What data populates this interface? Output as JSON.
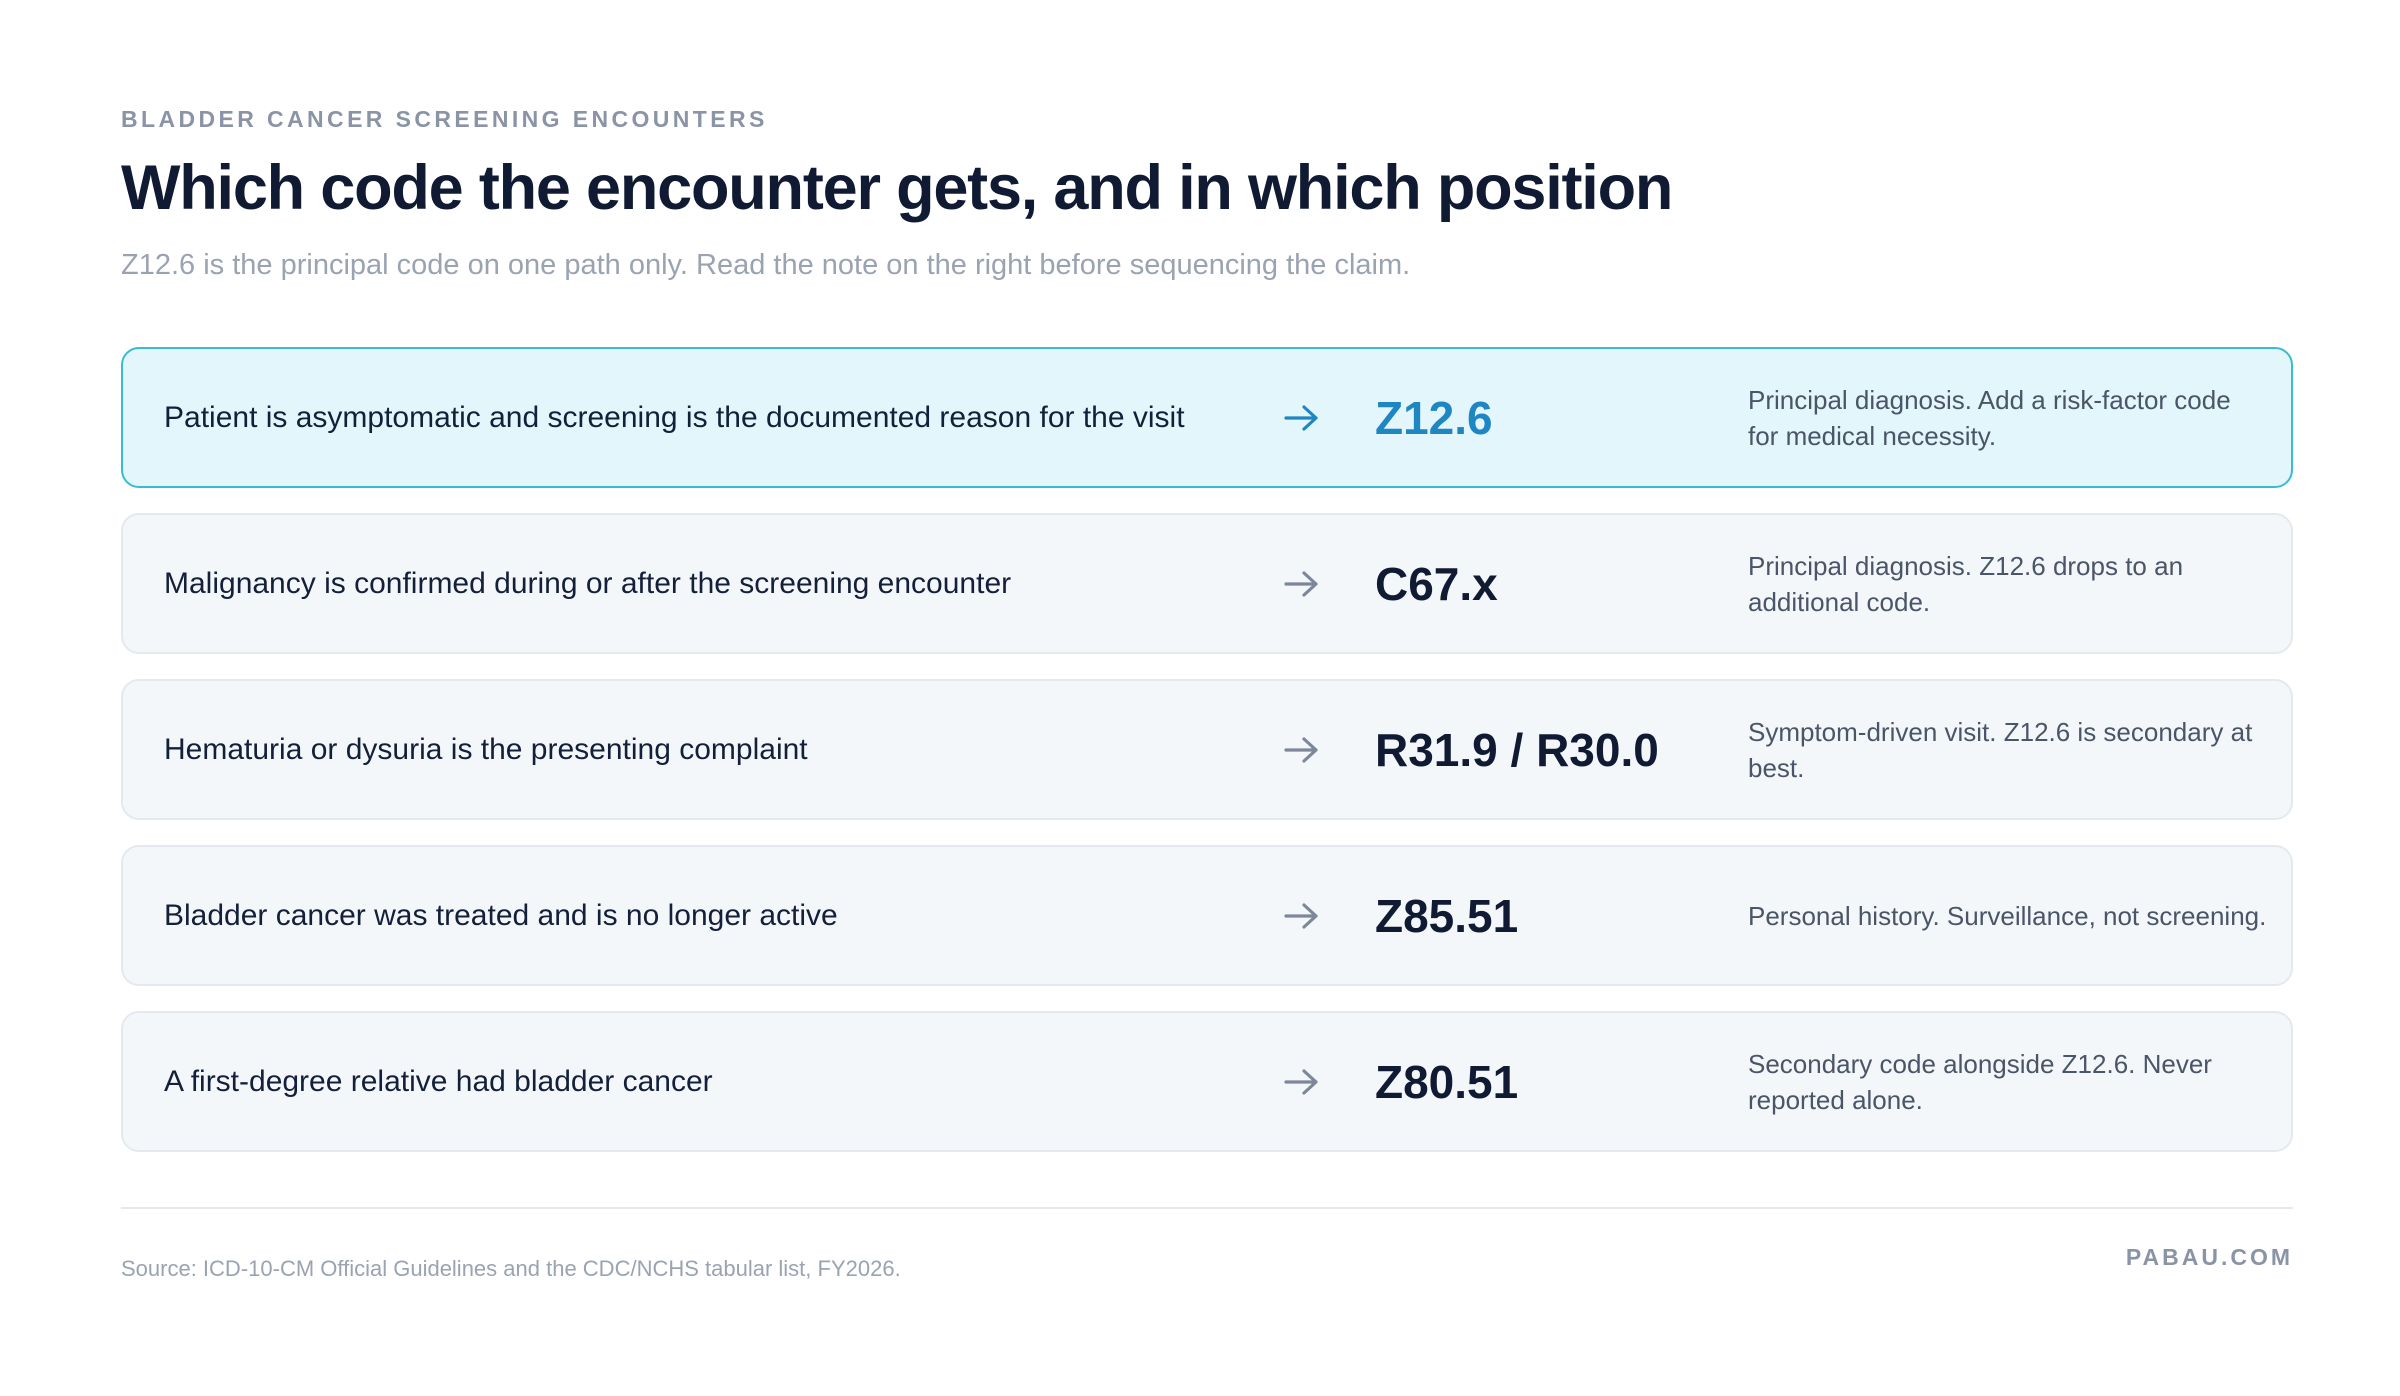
{
  "header": {
    "eyebrow": "BLADDER CANCER SCREENING ENCOUNTERS",
    "title": "Which code the encounter gets, and in which position",
    "subtitle": "Z12.6 is the principal code on one path only. Read the note on the right before sequencing the claim."
  },
  "rows": [
    {
      "condition": "Patient is asymptomatic and screening is the documented reason for the visit",
      "code": "Z12.6",
      "note": "Principal diagnosis. Add a risk-factor code for medical necessity.",
      "highlighted": true
    },
    {
      "condition": "Malignancy is confirmed during or after the screening encounter",
      "code": "C67.x",
      "note": "Principal diagnosis. Z12.6 drops to an additional code.",
      "highlighted": false
    },
    {
      "condition": "Hematuria or dysuria is the presenting complaint",
      "code": "R31.9 / R30.0",
      "note": "Symptom-driven visit. Z12.6 is secondary at best.",
      "highlighted": false
    },
    {
      "condition": "Bladder cancer was treated and is no longer active",
      "code": "Z85.51",
      "note": "Personal history. Surveillance, not screening.",
      "highlighted": false
    },
    {
      "condition": "A first-degree relative had bladder cancer",
      "code": "Z80.51",
      "note": "Secondary code alongside Z12.6. Never reported alone.",
      "highlighted": false
    }
  ],
  "footer": {
    "source": "Source: ICD-10-CM Official Guidelines and the CDC/NCHS tabular list, FY2026.",
    "brand": "PABAU.COM"
  },
  "icons": {
    "row_arrow": "arrow-right-icon"
  },
  "colors": {
    "highlight_background": "#e3f6fb",
    "highlight_border": "#38bcd2",
    "highlight_code": "#1f86c4",
    "row_background": "#f4f7fa",
    "title": "#101b33"
  }
}
